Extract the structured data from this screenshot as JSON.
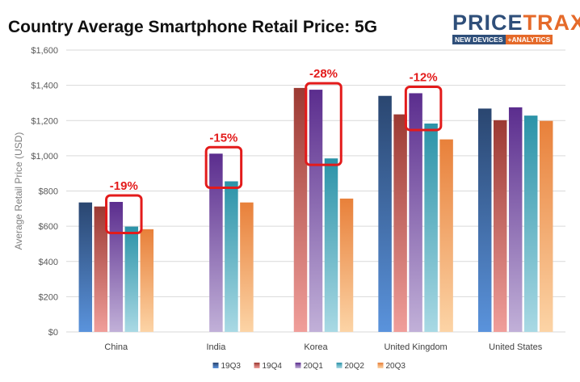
{
  "chart_data": {
    "type": "bar",
    "title": "Country Average Smartphone Retail Price: 5G",
    "xlabel": "",
    "ylabel": "Average Retail Price (USD)",
    "ylim": [
      0,
      1600
    ],
    "y_ticks": [
      "$0",
      "$200",
      "$400",
      "$600",
      "$800",
      "$1,000",
      "$1,200",
      "$1,400",
      "$1,600"
    ],
    "y_tick_values": [
      0,
      200,
      400,
      600,
      800,
      1000,
      1200,
      1400,
      1600
    ],
    "categories": [
      "China",
      "India",
      "Korea",
      "United Kingdom",
      "United States"
    ],
    "series": [
      {
        "name": "19Q3",
        "values": [
          735,
          null,
          null,
          1340,
          1268
        ],
        "top_color": "#2a4670",
        "bottom_color": "#5a93dc"
      },
      {
        "name": "19Q4",
        "values": [
          712,
          null,
          1385,
          1235,
          1202
        ],
        "top_color": "#9c3a33",
        "bottom_color": "#f09e9a"
      },
      {
        "name": "20Q1",
        "values": [
          738,
          1012,
          1375,
          1355,
          1275
        ],
        "top_color": "#5b2d8e",
        "bottom_color": "#c1b0d8"
      },
      {
        "name": "20Q2",
        "values": [
          598,
          855,
          985,
          1183,
          1228
        ],
        "top_color": "#2b93a8",
        "bottom_color": "#a9d9e4"
      },
      {
        "name": "20Q3",
        "values": [
          583,
          735,
          757,
          1093,
          1198
        ],
        "top_color": "#e8803a",
        "bottom_color": "#fcd4a6"
      }
    ],
    "grid": true,
    "legend_position": "bottom",
    "annotations": [
      {
        "label": "-19%",
        "category": "China",
        "series_from": "20Q1",
        "series_to": "20Q2"
      },
      {
        "label": "-15%",
        "category": "India",
        "series_from": "20Q1",
        "series_to": "20Q2"
      },
      {
        "label": "-28%",
        "category": "Korea",
        "series_from": "20Q1",
        "series_to": "20Q2"
      },
      {
        "label": "-12%",
        "category": "United Kingdom",
        "series_from": "20Q1",
        "series_to": "20Q2"
      }
    ]
  },
  "logo": {
    "part1": "PRICE",
    "part2": "TRAX",
    "sub1": "NEW DEVICES",
    "sub2": "+ANALYTICS"
  },
  "colors": {
    "annotation": "#e31b1b",
    "grid": "#d9d9d9"
  }
}
